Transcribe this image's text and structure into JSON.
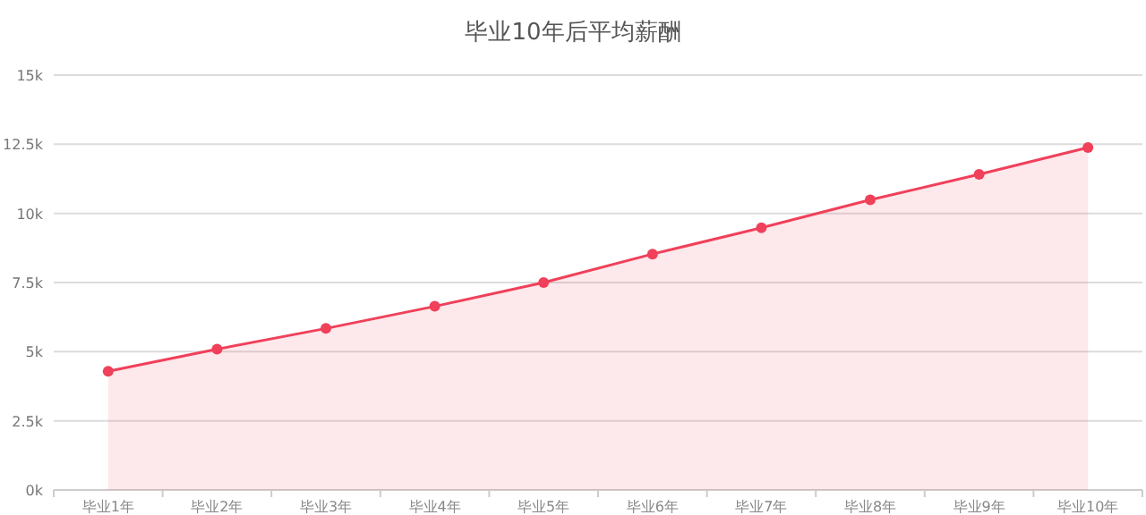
{
  "chart_data": {
    "type": "area",
    "title": "毕业10年后平均薪酬",
    "categories": [
      "毕业1年",
      "毕业2年",
      "毕业3年",
      "毕业4年",
      "毕业5年",
      "毕业6年",
      "毕业7年",
      "毕业8年",
      "毕业9年",
      "毕业10年"
    ],
    "series": [
      {
        "color": "#f0405a",
        "values": [
          4290,
          5090,
          5840,
          6640,
          7500,
          8530,
          9480,
          10490,
          11410,
          12380
        ]
      }
    ],
    "ylim": [
      0,
      15000
    ],
    "yticks": [
      {
        "value": 0,
        "label": "0k"
      },
      {
        "value": 2500,
        "label": "2.5k"
      },
      {
        "value": 5000,
        "label": "5k"
      },
      {
        "value": 7500,
        "label": "7.5k"
      },
      {
        "value": 10000,
        "label": "10k"
      },
      {
        "value": 12500,
        "label": "12.5k"
      },
      {
        "value": 15000,
        "label": "15k"
      }
    ],
    "grid": "y",
    "marker": "circle",
    "line_style": "solid"
  }
}
